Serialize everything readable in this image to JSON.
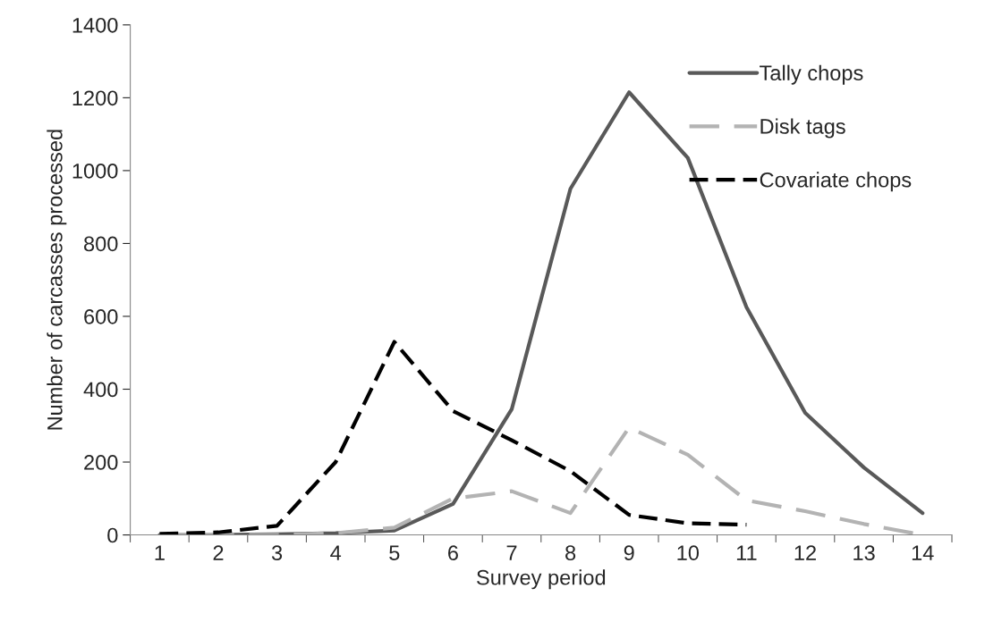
{
  "chart_data": {
    "type": "line",
    "xlabel": "Survey period",
    "ylabel": "Number of carcasses processed",
    "categories": [
      "1",
      "2",
      "3",
      "4",
      "5",
      "6",
      "7",
      "8",
      "9",
      "10",
      "11",
      "12",
      "13",
      "14"
    ],
    "series": [
      {
        "name": "Tally chops",
        "color": "#595959",
        "line_style": "solid",
        "values": [
          0,
          0,
          2,
          5,
          12,
          85,
          345,
          950,
          1215,
          1035,
          625,
          335,
          185,
          60
        ]
      },
      {
        "name": "Disk tags",
        "color": "#b3b3b3",
        "line_style": "dashed",
        "values": [
          0,
          0,
          0,
          5,
          20,
          100,
          120,
          60,
          295,
          220,
          95,
          65,
          30,
          0
        ]
      },
      {
        "name": "Covariate chops",
        "color": "#000000",
        "line_style": "dashed",
        "values": [
          3,
          7,
          25,
          200,
          530,
          340,
          260,
          175,
          55,
          32,
          28,
          null,
          null,
          null
        ]
      }
    ],
    "ylim": [
      0,
      1400
    ],
    "yticks": [
      0,
      200,
      400,
      600,
      800,
      1000,
      1200,
      1400
    ],
    "grid": false,
    "legend": "top right",
    "marker": "none"
  }
}
